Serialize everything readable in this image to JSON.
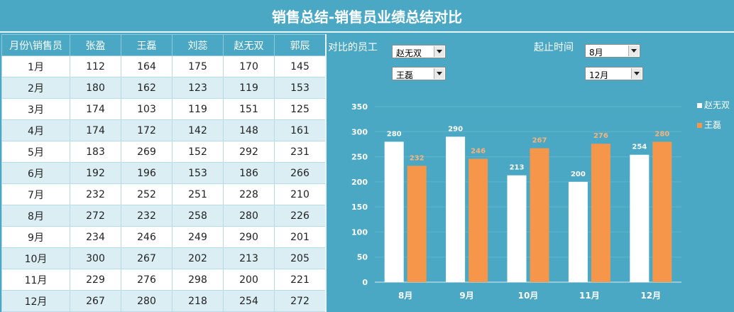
{
  "title": "销售总结-销售员业绩总结对比",
  "table": {
    "corner_label": "月份\\销售员",
    "persons": [
      "张盈",
      "王磊",
      "刘蕊",
      "赵无双",
      "郭辰"
    ],
    "rows": [
      {
        "month": "1月",
        "values": [
          112,
          164,
          175,
          170,
          145
        ]
      },
      {
        "month": "2月",
        "values": [
          180,
          162,
          123,
          119,
          153
        ]
      },
      {
        "month": "3月",
        "values": [
          174,
          103,
          119,
          151,
          125
        ]
      },
      {
        "month": "4月",
        "values": [
          174,
          172,
          142,
          148,
          161
        ]
      },
      {
        "month": "5月",
        "values": [
          183,
          269,
          152,
          292,
          231
        ]
      },
      {
        "month": "6月",
        "values": [
          192,
          196,
          153,
          186,
          266
        ]
      },
      {
        "month": "7月",
        "values": [
          232,
          252,
          251,
          228,
          210
        ]
      },
      {
        "month": "8月",
        "values": [
          272,
          232,
          258,
          280,
          226
        ]
      },
      {
        "month": "9月",
        "values": [
          234,
          246,
          249,
          290,
          201
        ]
      },
      {
        "month": "10月",
        "values": [
          300,
          267,
          202,
          213,
          205
        ]
      },
      {
        "month": "11月",
        "values": [
          229,
          276,
          298,
          200,
          221
        ]
      },
      {
        "month": "12月",
        "values": [
          267,
          280,
          218,
          254,
          272
        ]
      }
    ]
  },
  "controls": {
    "compare_label": "对比的员工",
    "employee_1": "赵无双",
    "employee_2": "王磊",
    "range_label": "起止时间",
    "start_month": "8月",
    "end_month": "12月"
  },
  "chart_data": {
    "type": "bar",
    "categories": [
      "8月",
      "9月",
      "10月",
      "11月",
      "12月"
    ],
    "series": [
      {
        "name": "赵无双",
        "values": [
          280,
          290,
          213,
          200,
          254
        ],
        "color": "#ffffff",
        "label_color": "#ffffff"
      },
      {
        "name": "王磊",
        "values": [
          232,
          246,
          267,
          276,
          280
        ],
        "color": "#f5964a",
        "label_color": "#f8b27a"
      }
    ],
    "ylim": [
      0,
      350
    ],
    "yticks": [
      0,
      50,
      100,
      150,
      200,
      250,
      300,
      350
    ],
    "grid": true,
    "legend": "right",
    "title": "",
    "xlabel": "",
    "ylabel": ""
  },
  "colors": {
    "background": "#4aa8c4",
    "header": "#4aa8c4",
    "row_alt": "#dbeef4",
    "accent_orange": "#f5964a"
  }
}
